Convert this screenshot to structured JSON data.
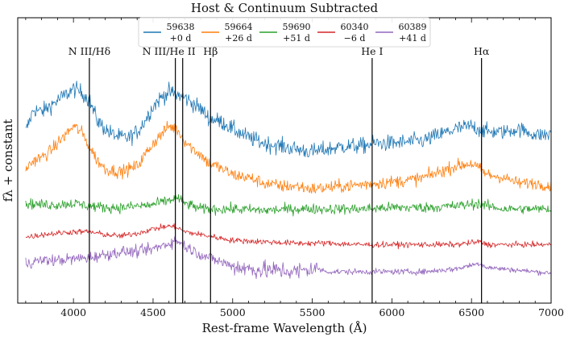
{
  "chart_data": {
    "type": "line",
    "title": "Host & Continuum Subtracted",
    "xlabel": "Rest-frame Wavelength (Å)",
    "ylabel": "fλ + constant",
    "xlim": [
      3650,
      7000
    ],
    "ylim": [
      0,
      1
    ],
    "x_ticks": [
      4000,
      4500,
      5000,
      5500,
      6000,
      6500,
      7000
    ],
    "y_ticks_labeled": false,
    "grid": false,
    "legend": {
      "position": "top-center",
      "entries": [
        {
          "line1": "59638",
          "line2": "+0 d",
          "color": "#1f77b4"
        },
        {
          "line1": "59664",
          "line2": "+26 d",
          "color": "#ff7f0e"
        },
        {
          "line1": "59690",
          "line2": "+51 d",
          "color": "#2ca02c"
        },
        {
          "line1": "60340",
          "line2": "−6 d",
          "color": "#d62728"
        },
        {
          "line1": "60389",
          "line2": "+41 d",
          "color": "#9467bd"
        }
      ]
    },
    "lines": [
      {
        "label": "N III/Hδ",
        "x": 4100
      },
      {
        "label": "N III/He II",
        "x": 4640
      },
      {
        "label": "",
        "x": 4686
      },
      {
        "label": "Hβ",
        "x": 4861
      },
      {
        "label": "He I",
        "x": 5876
      },
      {
        "label": "Hα",
        "x": 6563
      }
    ],
    "series": [
      {
        "name": "59638 +0 d",
        "color": "#1f77b4",
        "noise": 0.028,
        "x": [
          3700,
          3750,
          3800,
          3850,
          3900,
          3950,
          4000,
          4050,
          4100,
          4150,
          4200,
          4250,
          4300,
          4350,
          4400,
          4450,
          4500,
          4550,
          4600,
          4650,
          4700,
          4750,
          4800,
          4850,
          4900,
          4950,
          5000,
          5100,
          5200,
          5300,
          5400,
          5500,
          5600,
          5700,
          5800,
          5900,
          6000,
          6100,
          6200,
          6300,
          6400,
          6500,
          6550,
          6600,
          6700,
          6800,
          6900,
          7000
        ],
        "y": [
          0.6,
          0.68,
          0.67,
          0.69,
          0.71,
          0.73,
          0.75,
          0.74,
          0.71,
          0.64,
          0.61,
          0.59,
          0.58,
          0.58,
          0.6,
          0.64,
          0.69,
          0.72,
          0.74,
          0.73,
          0.72,
          0.7,
          0.68,
          0.65,
          0.64,
          0.63,
          0.61,
          0.58,
          0.56,
          0.55,
          0.54,
          0.53,
          0.54,
          0.55,
          0.55,
          0.56,
          0.56,
          0.565,
          0.57,
          0.59,
          0.61,
          0.62,
          0.61,
          0.6,
          0.6,
          0.61,
          0.59,
          0.59
        ]
      },
      {
        "name": "59664 +26 d",
        "color": "#ff7f0e",
        "noise": 0.022,
        "x": [
          3700,
          3750,
          3800,
          3850,
          3900,
          3950,
          4000,
          4050,
          4100,
          4150,
          4200,
          4300,
          4400,
          4450,
          4500,
          4550,
          4600,
          4650,
          4700,
          4750,
          4800,
          4850,
          4900,
          5000,
          5100,
          5200,
          5300,
          5400,
          5500,
          5600,
          5700,
          5800,
          5900,
          6000,
          6100,
          6200,
          6300,
          6400,
          6500,
          6550,
          6600,
          6700,
          6800,
          6900,
          7000
        ],
        "y": [
          0.47,
          0.5,
          0.51,
          0.53,
          0.56,
          0.59,
          0.62,
          0.6,
          0.55,
          0.5,
          0.47,
          0.46,
          0.48,
          0.52,
          0.56,
          0.59,
          0.62,
          0.61,
          0.57,
          0.54,
          0.52,
          0.49,
          0.48,
          0.45,
          0.44,
          0.42,
          0.41,
          0.41,
          0.4,
          0.405,
          0.41,
          0.415,
          0.42,
          0.425,
          0.43,
          0.44,
          0.46,
          0.48,
          0.49,
          0.47,
          0.45,
          0.44,
          0.42,
          0.42,
          0.41
        ]
      },
      {
        "name": "59690 +51 d",
        "color": "#2ca02c",
        "noise": 0.018,
        "x": [
          3700,
          3800,
          3900,
          4000,
          4100,
          4200,
          4300,
          4400,
          4500,
          4600,
          4650,
          4700,
          4800,
          4900,
          5000,
          5200,
          5400,
          5600,
          5800,
          6000,
          6200,
          6400,
          6550,
          6600,
          6700,
          6800,
          7000
        ],
        "y": [
          0.35,
          0.345,
          0.345,
          0.35,
          0.34,
          0.335,
          0.335,
          0.34,
          0.345,
          0.36,
          0.37,
          0.35,
          0.33,
          0.33,
          0.33,
          0.325,
          0.33,
          0.33,
          0.33,
          0.335,
          0.335,
          0.34,
          0.35,
          0.34,
          0.33,
          0.33,
          0.33
        ]
      },
      {
        "name": "60340 −6 d",
        "color": "#d62728",
        "noise": 0.01,
        "x": [
          3700,
          3800,
          3900,
          4000,
          4100,
          4200,
          4300,
          4400,
          4500,
          4600,
          4650,
          4700,
          4800,
          4900,
          5000,
          5200,
          5400,
          5600,
          5800,
          6000,
          6200,
          6400,
          6550,
          6600,
          6800,
          7000
        ],
        "y": [
          0.23,
          0.24,
          0.245,
          0.25,
          0.25,
          0.24,
          0.235,
          0.245,
          0.26,
          0.27,
          0.265,
          0.25,
          0.24,
          0.23,
          0.22,
          0.215,
          0.21,
          0.21,
          0.205,
          0.205,
          0.205,
          0.205,
          0.215,
          0.205,
          0.205,
          0.205
        ]
      },
      {
        "name": "60389 +41 d",
        "color": "#9467bd",
        "noise": 0.02,
        "x": [
          3700,
          3800,
          3900,
          4000,
          4100,
          4200,
          4300,
          4400,
          4500,
          4600,
          4650,
          4700,
          4800,
          4900,
          5000,
          5100,
          5200,
          5300,
          5400,
          5500,
          5530,
          5600,
          5800,
          6000,
          6200,
          6400,
          6550,
          6600,
          6800,
          7000
        ],
        "y": [
          0.14,
          0.15,
          0.15,
          0.155,
          0.16,
          0.17,
          0.18,
          0.18,
          0.19,
          0.21,
          0.22,
          0.2,
          0.17,
          0.15,
          0.13,
          0.12,
          0.115,
          0.115,
          0.11,
          0.12,
          0.12,
          0.11,
          0.11,
          0.11,
          0.11,
          0.12,
          0.14,
          0.125,
          0.115,
          0.105
        ]
      }
    ]
  }
}
